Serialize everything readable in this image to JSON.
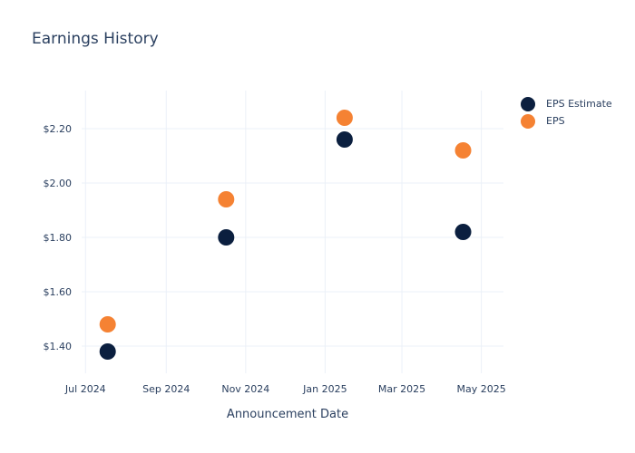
{
  "chart_data": {
    "type": "scatter",
    "title": "Earnings History",
    "xlabel": "Announcement Date",
    "ylabel": "",
    "x_ticks": [
      "Jul 2024",
      "Sep 2024",
      "Nov 2024",
      "Jan 2025",
      "Mar 2025",
      "May 2025"
    ],
    "x_tick_dates": [
      "2024-07-01",
      "2024-09-01",
      "2024-11-01",
      "2025-01-01",
      "2025-03-01",
      "2025-05-01"
    ],
    "xlim": [
      "2024-06-28",
      "2025-05-18"
    ],
    "y_ticks": [
      "$1.40",
      "$1.60",
      "$1.80",
      "$2.00",
      "$2.20"
    ],
    "y_tick_values": [
      1.4,
      1.6,
      1.8,
      2.0,
      2.2
    ],
    "ylim": [
      1.3,
      2.34
    ],
    "grid": true,
    "legend_position": "top-right",
    "series": [
      {
        "name": "EPS Estimate",
        "color": "#0b1f3f",
        "points": [
          {
            "x": "2024-07-18",
            "y": 1.38
          },
          {
            "x": "2024-10-17",
            "y": 1.8
          },
          {
            "x": "2025-01-16",
            "y": 2.16
          },
          {
            "x": "2025-04-17",
            "y": 1.82
          }
        ]
      },
      {
        "name": "EPS",
        "color": "#f58233",
        "points": [
          {
            "x": "2024-07-18",
            "y": 1.48
          },
          {
            "x": "2024-10-17",
            "y": 1.94
          },
          {
            "x": "2025-01-16",
            "y": 2.24
          },
          {
            "x": "2025-04-17",
            "y": 2.12
          }
        ]
      }
    ]
  }
}
